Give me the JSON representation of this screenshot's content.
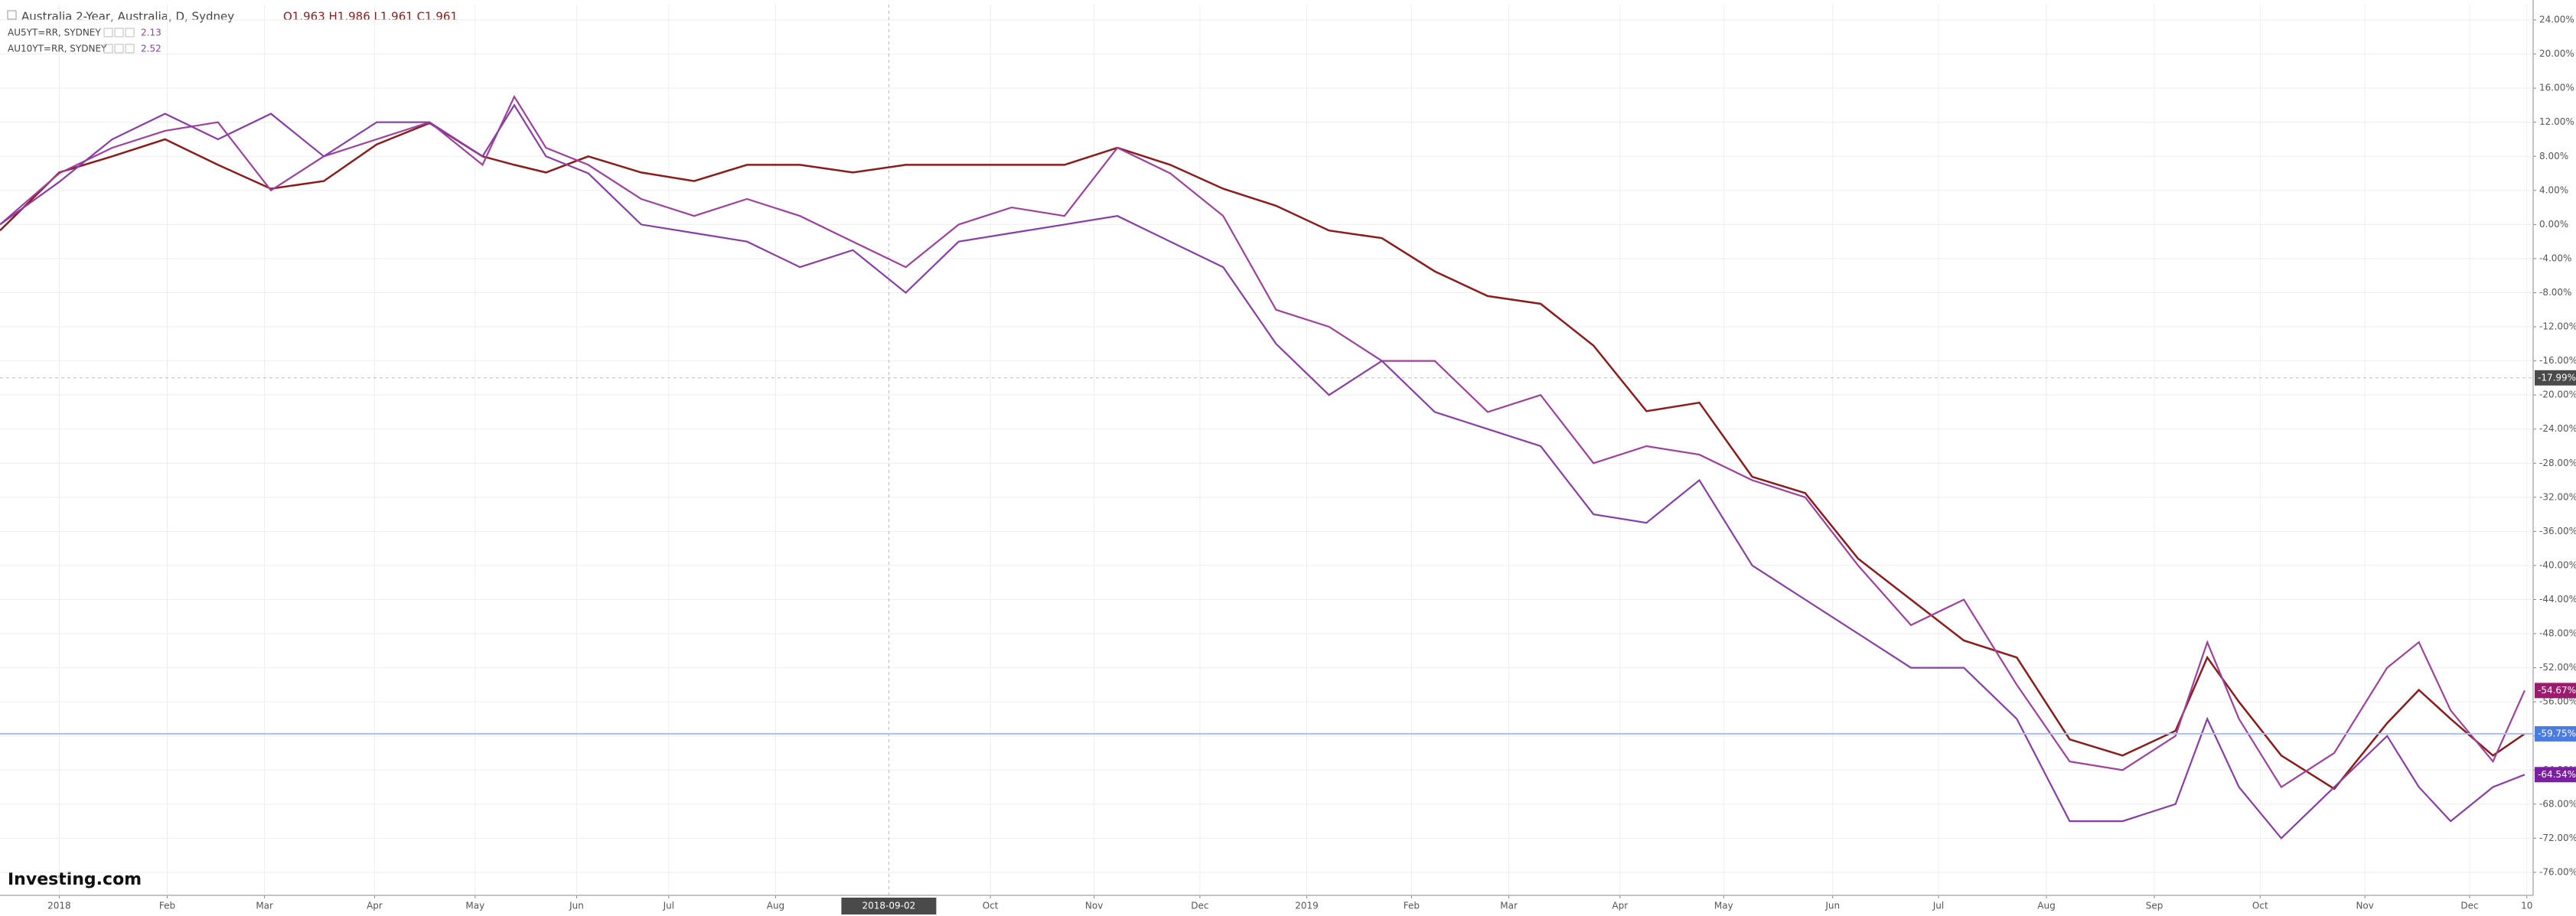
{
  "chart_data": {
    "type": "line",
    "title": "Australia 2-Year, Australia, D, Sydney",
    "ohlc_label": "O1.963 H1.986 L1.961 C1.961",
    "logo": "Investing.com",
    "grid": true,
    "xlim": [
      -0.56,
      23.38
    ],
    "ylim": [
      -78.7,
      25.8
    ],
    "xticks": [
      {
        "value": 0,
        "label": "2018"
      },
      {
        "value": 1.02,
        "label": "Feb"
      },
      {
        "value": 1.94,
        "label": "Mar"
      },
      {
        "value": 2.98,
        "label": "Apr"
      },
      {
        "value": 3.93,
        "label": "May"
      },
      {
        "value": 4.89,
        "label": "Jun"
      },
      {
        "value": 5.76,
        "label": "Jul"
      },
      {
        "value": 6.77,
        "label": "Aug"
      },
      {
        "value": 8.8,
        "label": "Oct"
      },
      {
        "value": 9.78,
        "label": "Nov"
      },
      {
        "value": 10.78,
        "label": "Dec"
      },
      {
        "value": 11.79,
        "label": "2019"
      },
      {
        "value": 12.78,
        "label": "Feb"
      },
      {
        "value": 13.7,
        "label": "Mar"
      },
      {
        "value": 14.75,
        "label": "Apr"
      },
      {
        "value": 15.73,
        "label": "May"
      },
      {
        "value": 16.76,
        "label": "Jun"
      },
      {
        "value": 17.76,
        "label": "Jul"
      },
      {
        "value": 18.78,
        "label": "Aug"
      },
      {
        "value": 19.8,
        "label": "Sep"
      },
      {
        "value": 20.8,
        "label": "Oct"
      },
      {
        "value": 21.79,
        "label": "Nov"
      },
      {
        "value": 22.78,
        "label": "Dec"
      },
      {
        "value": 23.32,
        "label": "10"
      }
    ],
    "yticks": [
      {
        "value": 24,
        "label": "24.00%"
      },
      {
        "value": 20,
        "label": "20.00%"
      },
      {
        "value": 16,
        "label": "16.00%"
      },
      {
        "value": 12,
        "label": "12.00%"
      },
      {
        "value": 8,
        "label": "8.00%"
      },
      {
        "value": 4,
        "label": "4.00%"
      },
      {
        "value": 0,
        "label": "0.00%"
      },
      {
        "value": -4,
        "label": "-4.00%"
      },
      {
        "value": -8,
        "label": "-8.00%"
      },
      {
        "value": -12,
        "label": "-12.00%"
      },
      {
        "value": -16,
        "label": "-16.00%"
      },
      {
        "value": -20,
        "label": "-20.00%"
      },
      {
        "value": -24,
        "label": "-24.00%"
      },
      {
        "value": -28,
        "label": "-28.00%"
      },
      {
        "value": -32,
        "label": "-32.00%"
      },
      {
        "value": -36,
        "label": "-36.00%"
      },
      {
        "value": -40,
        "label": "-40.00%"
      },
      {
        "value": -44,
        "label": "-44.00%"
      },
      {
        "value": -48,
        "label": "-48.00%"
      },
      {
        "value": -52,
        "label": "-52.00%"
      },
      {
        "value": -56,
        "label": "-56.00%"
      },
      {
        "value": -60,
        "label": "-60.00%"
      },
      {
        "value": -64,
        "label": "-64.00%"
      },
      {
        "value": -68,
        "label": "-68.00%"
      },
      {
        "value": -72,
        "label": "-72.00%"
      },
      {
        "value": -76,
        "label": "-76.00%"
      }
    ],
    "x": [
      -0.56,
      0,
      0.5,
      1,
      1.5,
      2,
      2.5,
      3,
      3.5,
      4,
      4.3,
      4.6,
      5,
      5.5,
      6,
      6.5,
      7,
      7.5,
      8,
      8.5,
      9,
      9.5,
      10,
      10.5,
      11,
      11.5,
      12,
      12.5,
      13,
      13.5,
      14,
      14.5,
      15,
      15.5,
      16,
      16.5,
      17,
      17.5,
      18,
      18.5,
      19,
      19.5,
      20,
      20.3,
      20.6,
      21,
      21.5,
      22,
      22.3,
      22.6,
      23,
      23.3
    ],
    "series": [
      {
        "name": "Australia 2-Year",
        "color": "#8e1b1b",
        "values": [
          -0.7,
          6.1,
          8,
          10,
          7,
          4.2,
          5.1,
          9.4,
          11.9,
          8,
          7,
          6.1,
          8,
          6.1,
          5.1,
          7,
          7,
          6.1,
          7,
          7,
          7,
          7,
          9,
          7,
          4.2,
          2.2,
          -0.7,
          -1.6,
          -5.5,
          -8.4,
          -9.3,
          -14.2,
          -21.9,
          -20.9,
          -29.6,
          -31.5,
          -39.2,
          -44,
          -48.8,
          -50.8,
          -60.4,
          -62.3,
          -59.4,
          -50.8,
          -56,
          -62.3,
          -66.2,
          -58.5,
          -54.6,
          -58,
          -62.3,
          -59.75
        ]
      },
      {
        "name": "AU5YT=RR, SYDNEY",
        "legend_value": "2.13",
        "color": "#a0409e",
        "values": [
          0,
          6,
          9,
          11,
          12,
          4,
          8,
          10,
          12,
          7,
          15,
          9,
          7,
          3,
          1,
          3,
          1,
          -2,
          -5,
          0,
          2,
          1,
          9,
          6,
          1,
          -10,
          -12,
          -16,
          -16,
          -22,
          -20,
          -28,
          -26,
          -27,
          -30,
          -32,
          -40,
          -47,
          -44,
          -54,
          -63,
          -64,
          -60,
          -49,
          -58,
          -66,
          -62,
          -52,
          -49,
          -57,
          -63,
          -54.67
        ]
      },
      {
        "name": "AU10YT=RR, SYDNEY",
        "legend_value": "2.52",
        "color": "#8a3da8",
        "values": [
          0,
          5,
          10,
          13,
          10,
          13,
          8,
          12,
          12,
          8,
          14,
          8,
          6,
          0,
          -1,
          -2,
          -5,
          -3,
          -8,
          -2,
          -1,
          0,
          1,
          -2,
          -5,
          -14,
          -20,
          -16,
          -22,
          -24,
          -26,
          -34,
          -35,
          -30,
          -40,
          -44,
          -48,
          -52,
          -52,
          -58,
          -70,
          -70,
          -68,
          -58,
          -66,
          -72,
          -66,
          -60,
          -66,
          -70,
          -66,
          -64.54
        ]
      }
    ],
    "price_markers": [
      {
        "value": -54.67,
        "label": "-54.67%",
        "color": "#9b1b6e"
      },
      {
        "value": -59.75,
        "label": "-59.75%",
        "color": "#4a7be0"
      },
      {
        "value": -64.54,
        "label": "-64.54%",
        "color": "#7b1fa2"
      }
    ],
    "crosshair": {
      "x": 7.84,
      "x_label": "2018-09-02",
      "y": -17.99,
      "y_label": "-17.99%"
    }
  }
}
